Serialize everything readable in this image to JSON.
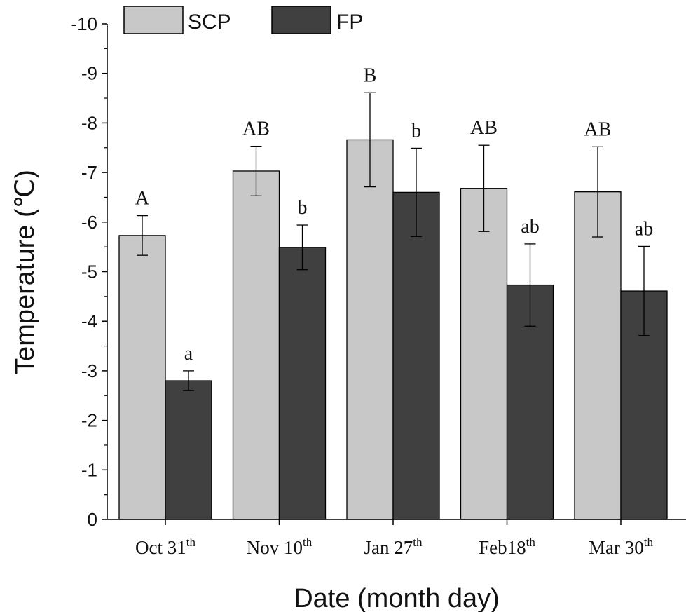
{
  "chart_data": {
    "type": "bar",
    "title": "",
    "xlabel": "Date (month day)",
    "ylabel": "Temperature (℃)",
    "ylim": [
      0,
      -10
    ],
    "y_axis_inverted": true,
    "yticks": [
      0,
      -1,
      -2,
      -3,
      -4,
      -5,
      -6,
      -7,
      -8,
      -9,
      -10
    ],
    "categories": [
      {
        "main": "Oct 31",
        "sup": "th"
      },
      {
        "main": "Nov 10",
        "sup": "th"
      },
      {
        "main": "Jan 27",
        "sup": "th"
      },
      {
        "main": "Feb18",
        "sup": "th"
      },
      {
        "main": "Mar 30",
        "sup": "th"
      }
    ],
    "series": [
      {
        "name": "SCP",
        "color": "#c8c8c8",
        "values": [
          -5.73,
          -7.03,
          -7.66,
          -6.68,
          -6.61
        ],
        "errors": [
          0.4,
          0.5,
          0.95,
          0.87,
          0.91
        ],
        "significance": [
          "A",
          "AB",
          "B",
          "AB",
          "AB"
        ]
      },
      {
        "name": "FP",
        "color": "#404040",
        "values": [
          -2.8,
          -5.49,
          -6.6,
          -4.73,
          -4.61
        ],
        "errors": [
          0.2,
          0.45,
          0.89,
          0.83,
          0.9
        ],
        "significance": [
          "a",
          "b",
          "b",
          "ab",
          "ab"
        ]
      }
    ],
    "grid": false,
    "legend": "top-left"
  }
}
